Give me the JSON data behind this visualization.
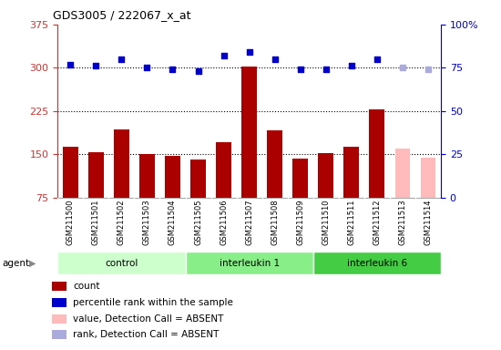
{
  "title": "GDS3005 / 222067_x_at",
  "samples": [
    "GSM211500",
    "GSM211501",
    "GSM211502",
    "GSM211503",
    "GSM211504",
    "GSM211505",
    "GSM211506",
    "GSM211507",
    "GSM211508",
    "GSM211509",
    "GSM211510",
    "GSM211511",
    "GSM211512",
    "GSM211513",
    "GSM211514"
  ],
  "bar_values": [
    163,
    154,
    193,
    150,
    148,
    141,
    171,
    302,
    192,
    143,
    152,
    163,
    228,
    160,
    145
  ],
  "bar_colors": [
    "#aa0000",
    "#aa0000",
    "#aa0000",
    "#aa0000",
    "#aa0000",
    "#aa0000",
    "#aa0000",
    "#aa0000",
    "#aa0000",
    "#aa0000",
    "#aa0000",
    "#aa0000",
    "#aa0000",
    "#ffbbbb",
    "#ffbbbb"
  ],
  "scatter_values": [
    77,
    76,
    80,
    75,
    74,
    73,
    82,
    84,
    80,
    74,
    74,
    76,
    80,
    75,
    74
  ],
  "scatter_colors": [
    "#0000cc",
    "#0000cc",
    "#0000cc",
    "#0000cc",
    "#0000cc",
    "#0000cc",
    "#0000cc",
    "#0000cc",
    "#0000cc",
    "#0000cc",
    "#0000cc",
    "#0000cc",
    "#0000cc",
    "#aaaadd",
    "#aaaadd"
  ],
  "ylim_left": [
    75,
    375
  ],
  "ylim_right": [
    0,
    100
  ],
  "yticks_left": [
    75,
    150,
    225,
    300,
    375
  ],
  "yticks_right": [
    0,
    25,
    50,
    75,
    100
  ],
  "hlines": [
    150,
    225,
    300
  ],
  "groups": [
    {
      "label": "control",
      "start": 0,
      "end": 4,
      "color": "#ccffcc"
    },
    {
      "label": "interleukin 1",
      "start": 5,
      "end": 9,
      "color": "#88ee88"
    },
    {
      "label": "interleukin 6",
      "start": 10,
      "end": 14,
      "color": "#44cc44"
    }
  ],
  "legend_items": [
    {
      "label": "count",
      "color": "#aa0000"
    },
    {
      "label": "percentile rank within the sample",
      "color": "#0000cc"
    },
    {
      "label": "value, Detection Call = ABSENT",
      "color": "#ffbbbb"
    },
    {
      "label": "rank, Detection Call = ABSENT",
      "color": "#aaaadd"
    }
  ],
  "agent_label": "agent",
  "bg_color": "#cccccc",
  "plot_bg": "#ffffff",
  "title_color": "#000000",
  "left_axis_color": "#cc3333",
  "right_axis_color": "#0000cc"
}
